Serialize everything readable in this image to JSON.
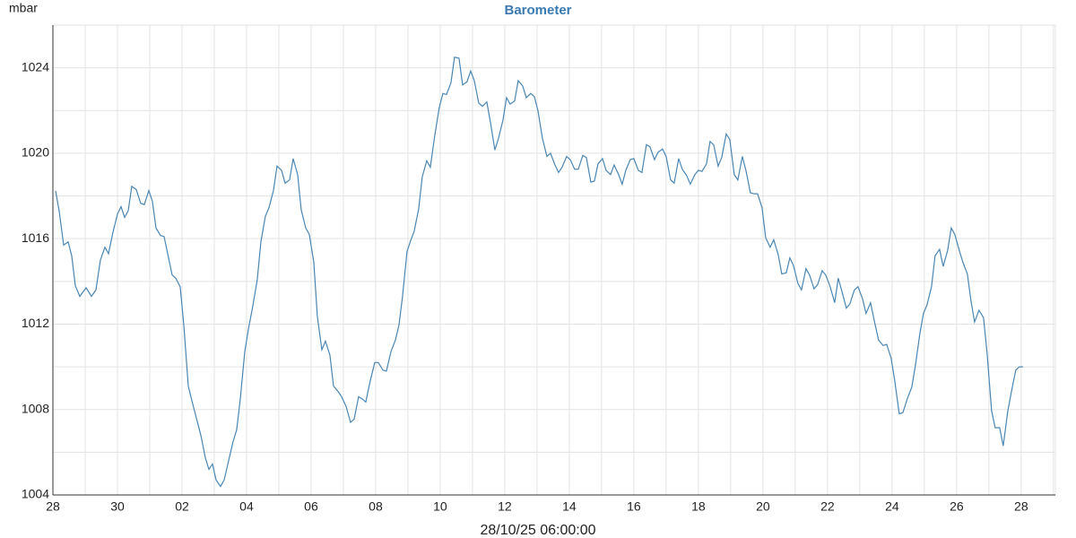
{
  "chart_data": {
    "type": "line",
    "title": "Barometer",
    "y_label": "mbar",
    "x_label": "28/10/25 06:00:00",
    "x": [
      0.083,
      0.194,
      0.333,
      0.472,
      0.583,
      0.694,
      0.833,
      1.028,
      1.194,
      1.333,
      1.472,
      1.611,
      1.722,
      1.861,
      2.0,
      2.111,
      2.222,
      2.333,
      2.444,
      2.583,
      2.722,
      2.833,
      2.972,
      3.083,
      3.194,
      3.333,
      3.444,
      3.556,
      3.694,
      3.806,
      3.944,
      4.056,
      4.194,
      4.333,
      4.472,
      4.583,
      4.722,
      4.833,
      4.944,
      5.056,
      5.194,
      5.306,
      5.444,
      5.583,
      5.694,
      5.806,
      5.944,
      6.056,
      6.194,
      6.333,
      6.444,
      6.583,
      6.694,
      6.833,
      6.944,
      7.083,
      7.194,
      7.333,
      7.444,
      7.583,
      7.694,
      7.833,
      7.944,
      8.083,
      8.194,
      8.333,
      8.444,
      8.583,
      8.694,
      8.833,
      8.944,
      9.083,
      9.222,
      9.333,
      9.472,
      9.583,
      9.694,
      9.833,
      9.972,
      10.083,
      10.222,
      10.333,
      10.472,
      10.611,
      10.722,
      10.833,
      10.972,
      11.083,
      11.194,
      11.333,
      11.444,
      11.583,
      11.694,
      11.833,
      11.972,
      12.083,
      12.194,
      12.333,
      12.444,
      12.583,
      12.694,
      12.833,
      12.944,
      13.056,
      13.194,
      13.306,
      13.444,
      13.556,
      13.694,
      13.806,
      13.944,
      14.056,
      14.167,
      14.306,
      14.417,
      14.556,
      14.667,
      14.806,
      14.917,
      15.028,
      15.167,
      15.306,
      15.417,
      15.556,
      15.667,
      15.778,
      15.917,
      16.028,
      16.167,
      16.278,
      16.417,
      16.528,
      16.667,
      16.778,
      16.889,
      17.028,
      17.139,
      17.278,
      17.389,
      17.528,
      17.639,
      17.75,
      17.889,
      18.0,
      18.139,
      18.25,
      18.389,
      18.5,
      18.639,
      18.75,
      18.889,
      19.0,
      19.139,
      19.25,
      19.389,
      19.5,
      19.639,
      19.75,
      19.889,
      20.0,
      20.111,
      20.25,
      20.361,
      20.472,
      20.611,
      20.722,
      20.861,
      20.972,
      21.111,
      21.222,
      21.361,
      21.472,
      21.611,
      21.722,
      21.833,
      21.972,
      22.083,
      22.222,
      22.333,
      22.472,
      22.583,
      22.722,
      22.833,
      22.944,
      23.083,
      23.194,
      23.333,
      23.444,
      23.583,
      23.694,
      23.833,
      23.944,
      24.083,
      24.222,
      24.333,
      24.444,
      24.583,
      24.694,
      24.833,
      24.944,
      25.083,
      25.194,
      25.333,
      25.472,
      25.583,
      25.722,
      25.833,
      25.972,
      26.083,
      26.222,
      26.333,
      26.472,
      26.611,
      26.722,
      26.861,
      26.972,
      27.083,
      27.222,
      27.333,
      27.472,
      27.583,
      27.722,
      27.833,
      27.944,
      28.083,
      28.194,
      28.333,
      28.444,
      28.556,
      28.694,
      28.833,
      28.944,
      29.083,
      29.194,
      29.333,
      29.444,
      29.583,
      29.694,
      29.833,
      29.944,
      30.056
    ],
    "series": [
      {
        "name": "Barometer",
        "color": "#4a86b4",
        "values": [
          1018.24,
          1017.3,
          1015.7,
          1015.85,
          1015.2,
          1013.8,
          1013.3,
          1013.7,
          1013.3,
          1013.6,
          1015.0,
          1015.6,
          1015.3,
          1016.3,
          1017.15,
          1017.5,
          1017.0,
          1017.3,
          1018.45,
          1018.3,
          1017.65,
          1017.6,
          1018.25,
          1017.75,
          1016.5,
          1016.15,
          1016.1,
          1015.3,
          1014.3,
          1014.15,
          1013.75,
          1011.95,
          1009.1,
          1008.25,
          1007.45,
          1006.8,
          1005.75,
          1005.2,
          1005.45,
          1004.7,
          1004.4,
          1004.7,
          1005.6,
          1006.5,
          1007.05,
          1008.5,
          1010.7,
          1011.75,
          1012.85,
          1014.1,
          1015.85,
          1017.05,
          1017.45,
          1018.25,
          1019.4,
          1019.2,
          1018.6,
          1018.75,
          1019.75,
          1019.0,
          1017.35,
          1016.5,
          1016.2,
          1014.9,
          1012.35,
          1010.8,
          1011.2,
          1010.55,
          1009.1,
          1008.85,
          1008.6,
          1008.15,
          1007.4,
          1007.55,
          1008.6,
          1008.5,
          1008.35,
          1009.35,
          1010.2,
          1010.2,
          1009.85,
          1009.8,
          1010.7,
          1011.25,
          1011.95,
          1013.3,
          1015.4,
          1015.9,
          1016.35,
          1017.4,
          1018.9,
          1019.65,
          1019.35,
          1020.85,
          1022.15,
          1022.8,
          1022.75,
          1023.3,
          1024.5,
          1024.45,
          1023.2,
          1023.35,
          1023.85,
          1023.4,
          1022.35,
          1022.2,
          1022.4,
          1021.45,
          1020.15,
          1020.7,
          1021.55,
          1022.6,
          1022.3,
          1022.45,
          1023.4,
          1023.15,
          1022.6,
          1022.8,
          1022.65,
          1022.0,
          1020.7,
          1019.85,
          1020.0,
          1019.45,
          1019.1,
          1019.35,
          1019.85,
          1019.7,
          1019.25,
          1019.25,
          1019.9,
          1019.8,
          1018.65,
          1018.7,
          1019.5,
          1019.75,
          1019.2,
          1019.0,
          1019.45,
          1019.0,
          1018.55,
          1019.2,
          1019.7,
          1019.75,
          1019.2,
          1019.1,
          1020.4,
          1020.3,
          1019.7,
          1020.05,
          1020.2,
          1019.85,
          1018.75,
          1018.6,
          1019.75,
          1019.25,
          1018.95,
          1018.55,
          1019.0,
          1019.2,
          1019.15,
          1019.5,
          1020.55,
          1020.4,
          1019.4,
          1019.8,
          1020.9,
          1020.65,
          1019.0,
          1018.75,
          1019.85,
          1019.2,
          1018.15,
          1018.1,
          1018.1,
          1017.45,
          1016.05,
          1015.6,
          1015.95,
          1015.25,
          1014.35,
          1014.4,
          1015.1,
          1014.75,
          1013.9,
          1013.6,
          1014.6,
          1014.3,
          1013.65,
          1013.85,
          1014.5,
          1014.3,
          1013.75,
          1013.0,
          1014.15,
          1013.55,
          1012.75,
          1012.95,
          1013.6,
          1013.75,
          1013.2,
          1012.5,
          1013.0,
          1012.0,
          1011.25,
          1011.0,
          1011.05,
          1010.4,
          1009.35,
          1007.8,
          1007.85,
          1008.5,
          1009.05,
          1010.05,
          1011.55,
          1012.5,
          1012.9,
          1013.75,
          1015.2,
          1015.5,
          1014.7,
          1015.45,
          1016.5,
          1016.2,
          1015.45,
          1014.9,
          1014.35,
          1013.1,
          1012.1,
          1012.65,
          1012.3,
          1010.65,
          1007.95,
          1007.15,
          1007.15,
          1006.3,
          1007.9,
          1008.8,
          1009.85,
          1010.0,
          1010.0
        ]
      }
    ],
    "xlim": [
      0,
      31.06
    ],
    "ylim": [
      1004,
      1026
    ],
    "xticks": [
      {
        "value": 0,
        "label": "28"
      },
      {
        "value": 2,
        "label": "30"
      },
      {
        "value": 4,
        "label": "02"
      },
      {
        "value": 6,
        "label": "04"
      },
      {
        "value": 8,
        "label": "06"
      },
      {
        "value": 10,
        "label": "08"
      },
      {
        "value": 12,
        "label": "10"
      },
      {
        "value": 14,
        "label": "12"
      },
      {
        "value": 16,
        "label": "14"
      },
      {
        "value": 18,
        "label": "16"
      },
      {
        "value": 20,
        "label": "18"
      },
      {
        "value": 22,
        "label": "20"
      },
      {
        "value": 24,
        "label": "22"
      },
      {
        "value": 26,
        "label": "24"
      },
      {
        "value": 28,
        "label": "26"
      },
      {
        "value": 30,
        "label": "28"
      }
    ],
    "yticks": [
      1004,
      1008,
      1012,
      1016,
      1020,
      1024
    ],
    "grid": true,
    "minor_grid": true
  }
}
